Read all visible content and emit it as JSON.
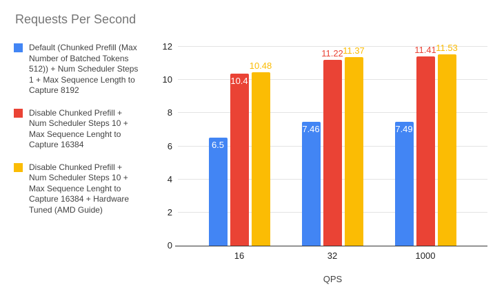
{
  "title": "Requests Per Second",
  "legend": {
    "position": "left",
    "items": [
      {
        "label": "Default (Chunked Prefill (Max Number of Batched Tokens 512)) + Num Scheduler Steps 1 + Max Sequence Length to Capture 8192",
        "color": "#4285F4"
      },
      {
        "label": "Disable Chunked Prefill + Num Scheduler Steps 10 + Max Sequence Lenght to Capture 16384",
        "color": "#EA4335"
      },
      {
        "label": "Disable Chunked Prefill + Num Scheduler Steps 10 + Max Sequence Lenght to Capture 16384 + Hardware Tuned (AMD Guide)",
        "color": "#FBBC04"
      }
    ]
  },
  "chart_data": {
    "type": "bar",
    "title": "Requests Per Second",
    "categories": [
      "16",
      "32",
      "1000"
    ],
    "series": [
      {
        "name": "Default (Chunked Prefill (Max Number of Batched Tokens 512)) + Num Scheduler Steps 1 + Max Sequence Length to Capture 8192",
        "color": "#4285F4",
        "values": [
          6.5,
          7.46,
          7.49
        ],
        "value_labels": [
          "6.5",
          "7.46",
          "7.49"
        ],
        "label_placement": [
          "inside",
          "inside",
          "inside"
        ]
      },
      {
        "name": "Disable Chunked Prefill + Num Scheduler Steps 10 + Max Sequence Lenght to Capture 16384",
        "color": "#EA4335",
        "values": [
          10.4,
          11.22,
          11.41
        ],
        "value_labels": [
          "10.4",
          "11.22",
          "11.41"
        ],
        "label_placement": [
          "inside",
          "above",
          "above"
        ]
      },
      {
        "name": "Disable Chunked Prefill + Num Scheduler Steps 10 + Max Sequence Lenght to Capture 16384 + Hardware Tuned (AMD Guide)",
        "color": "#FBBC04",
        "values": [
          10.48,
          11.37,
          11.53
        ],
        "value_labels": [
          "10.48",
          "11.37",
          "11.53"
        ],
        "label_placement": [
          "above",
          "above",
          "above"
        ]
      }
    ],
    "xlabel": "QPS",
    "ylabel": "",
    "ylim": [
      0,
      12
    ],
    "yticks": [
      0,
      2,
      4,
      6,
      8,
      10,
      12
    ],
    "grid": true,
    "legend_position": "left"
  }
}
